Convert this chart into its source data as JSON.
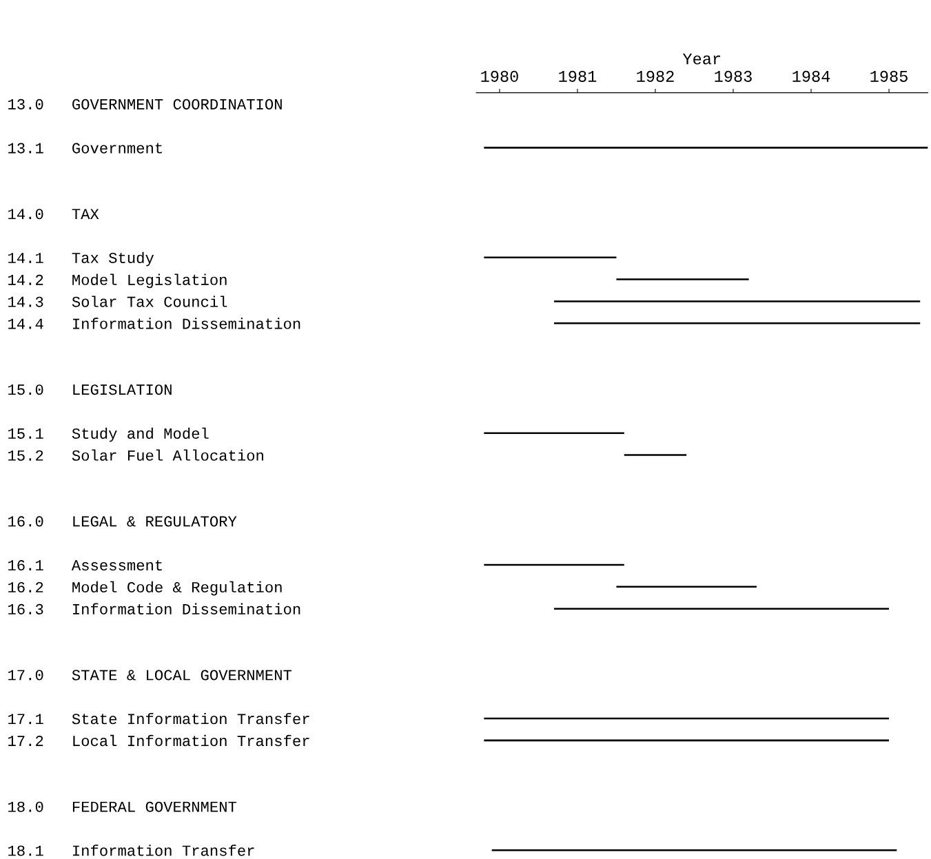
{
  "chart_data": {
    "type": "bar",
    "orientation": "horizontal",
    "categories": [
      "13.0   GOVERNMENT COORDINATION",
      null,
      "13.1   Government",
      null,
      null,
      "14.0   TAX",
      null,
      "14.1   Tax Study",
      "14.2   Model Legislation",
      "14.3   Solar Tax Council",
      "14.4   Information Dissemination",
      null,
      null,
      "15.0   LEGISLATION",
      null,
      "15.1   Study and Model",
      "15.2   Solar Fuel Allocation",
      null,
      null,
      "16.0   LEGAL & REGULATORY",
      null,
      "16.1   Assessment",
      "16.2   Model Code & Regulation",
      "16.3   Information Dissemination",
      null,
      null,
      "17.0   STATE & LOCAL GOVERNMENT",
      null,
      "17.1   State Information Transfer",
      "17.2   Local Information Transfer",
      null,
      null,
      "18.0   FEDERAL GOVERNMENT",
      null,
      "18.1   Information Transfer"
    ],
    "series": [
      {
        "axis": "x2",
        "color": "#000000",
        "base": [
          null,
          null,
          1979.8,
          null,
          null,
          null,
          null,
          1979.8,
          1981.5,
          1980.7,
          1980.7,
          null,
          null,
          null,
          null,
          1979.8,
          1981.6,
          null,
          null,
          null,
          null,
          1979.8,
          1981.5,
          1980.7,
          null,
          null,
          null,
          null,
          1979.8,
          1979.8,
          null,
          null,
          null,
          null,
          1979.9
        ],
        "values": [
          null,
          null,
          5.7,
          null,
          null,
          null,
          null,
          1.7,
          1.7,
          4.7,
          4.7,
          null,
          null,
          null,
          null,
          1.8,
          0.8,
          null,
          null,
          null,
          null,
          1.8,
          1.8,
          4.3,
          null,
          null,
          null,
          null,
          5.2,
          5.2,
          null,
          null,
          null,
          null,
          5.2
        ]
      }
    ],
    "tick_labels": "y",
    "x2lim": [
      1979.7,
      1985.5
    ],
    "x2ticks": [
      1980,
      1981,
      1982,
      1983,
      1984,
      1985
    ],
    "x2label": "Year",
    "grid": false,
    "legend": false
  }
}
